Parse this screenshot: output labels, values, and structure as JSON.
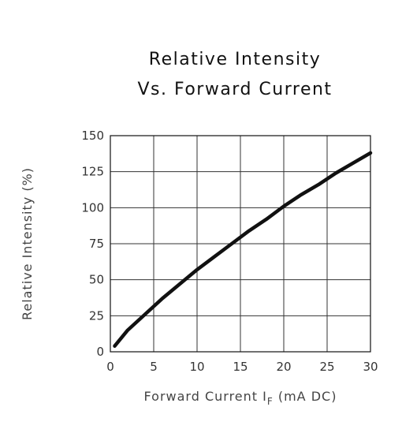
{
  "chart_data": {
    "type": "line",
    "title_lines": [
      "Relative Intensity",
      "Vs. Forward Current"
    ],
    "xlabel_prefix": "Forward Current I",
    "xlabel_subscript": "F",
    "xlabel_suffix": " (mA DC)",
    "ylabel": "Relative Intensity (%)",
    "xlim": [
      0,
      30
    ],
    "ylim": [
      0,
      150
    ],
    "x_ticks": [
      0,
      5,
      10,
      15,
      20,
      25,
      30
    ],
    "y_ticks": [
      0,
      25,
      50,
      75,
      100,
      125,
      150
    ],
    "grid": true,
    "series": [
      {
        "color": "#111111",
        "x": [
          0.5,
          2,
          4,
          6,
          8,
          10,
          12,
          14,
          16,
          18,
          20,
          22,
          24,
          26,
          28,
          30
        ],
        "y": [
          4,
          15,
          26,
          37,
          47,
          57,
          66,
          75,
          84,
          92,
          101,
          109,
          116,
          124,
          131,
          138
        ]
      }
    ]
  }
}
